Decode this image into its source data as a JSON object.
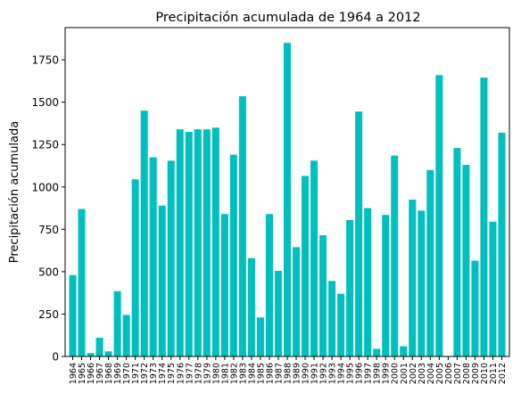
{
  "chart_data": {
    "type": "bar",
    "title": "Precipitación acumulada de 1964 a 2012",
    "xlabel": "",
    "ylabel": "Precipitación acumulada",
    "ylim": [
      0,
      1940
    ],
    "yticks": [
      0,
      250,
      500,
      750,
      1000,
      1250,
      1500,
      1750
    ],
    "ytick_labels": [
      "0",
      "250",
      "500",
      "750",
      "1000",
      "1250",
      "1500",
      "1750"
    ],
    "bar_color": "#00bfbf",
    "grid": false,
    "categories": [
      "1964",
      "1965",
      "1966",
      "1967",
      "1968",
      "1969",
      "1970",
      "1971",
      "1972",
      "1973",
      "1974",
      "1975",
      "1976",
      "1977",
      "1978",
      "1979",
      "1980",
      "1981",
      "1982",
      "1983",
      "1984",
      "1985",
      "1986",
      "1987",
      "1988",
      "1989",
      "1990",
      "1991",
      "1992",
      "1993",
      "1994",
      "1995",
      "1996",
      "1997",
      "1998",
      "1999",
      "2000",
      "2001",
      "2002",
      "2003",
      "2004",
      "2005",
      "2006",
      "2007",
      "2008",
      "2009",
      "2010",
      "2011",
      "2012"
    ],
    "values": [
      480,
      870,
      20,
      110,
      30,
      385,
      245,
      1045,
      1450,
      1175,
      890,
      1155,
      1340,
      1325,
      1340,
      1340,
      1350,
      840,
      1190,
      1535,
      580,
      230,
      840,
      505,
      1850,
      645,
      1065,
      1155,
      715,
      445,
      370,
      805,
      1445,
      875,
      45,
      835,
      1185,
      60,
      925,
      860,
      1100,
      1660,
      0,
      1230,
      1130,
      565,
      1645,
      795,
      1320
    ]
  }
}
